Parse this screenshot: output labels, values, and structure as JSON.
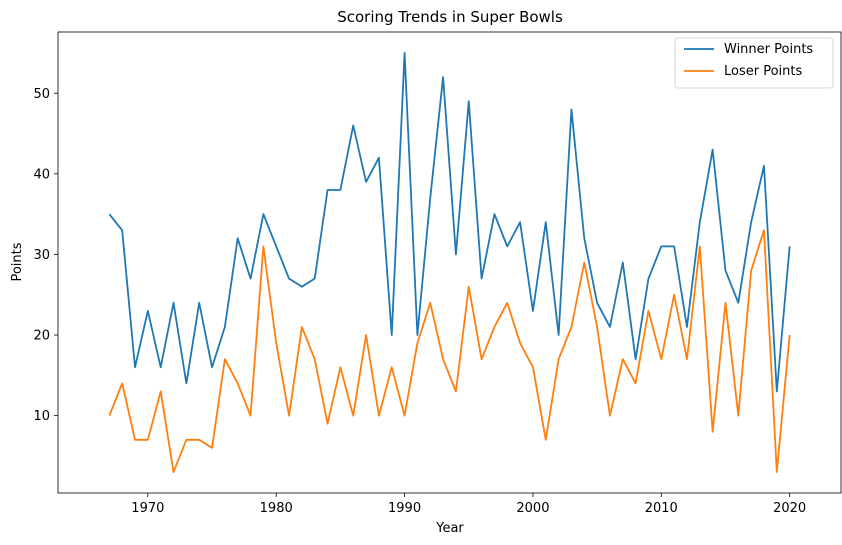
{
  "chart_data": {
    "type": "line",
    "title": "Scoring Trends in Super Bowls",
    "xlabel": "Year",
    "ylabel": "Points",
    "xlim": [
      1963,
      2024
    ],
    "ylim": [
      0.4,
      57.6
    ],
    "xticks": [
      1970,
      1980,
      1990,
      2000,
      2010,
      2020
    ],
    "yticks": [
      10,
      20,
      30,
      40,
      50
    ],
    "grid": false,
    "legend_position": "top-right",
    "x": [
      1967,
      1968,
      1969,
      1970,
      1971,
      1972,
      1973,
      1974,
      1975,
      1976,
      1977,
      1978,
      1979,
      1980,
      1981,
      1982,
      1983,
      1984,
      1985,
      1986,
      1987,
      1988,
      1989,
      1990,
      1991,
      1992,
      1993,
      1994,
      1995,
      1996,
      1997,
      1998,
      1999,
      2000,
      2001,
      2002,
      2003,
      2004,
      2005,
      2006,
      2007,
      2008,
      2009,
      2010,
      2011,
      2012,
      2013,
      2014,
      2015,
      2016,
      2017,
      2018,
      2019,
      2020
    ],
    "series": [
      {
        "name": "Winner Points",
        "color": "#1f77b4",
        "values": [
          35,
          33,
          16,
          23,
          16,
          24,
          14,
          24,
          16,
          21,
          32,
          27,
          35,
          31,
          27,
          26,
          27,
          38,
          38,
          46,
          39,
          42,
          20,
          55,
          20,
          37,
          52,
          30,
          49,
          27,
          35,
          31,
          34,
          23,
          34,
          20,
          48,
          32,
          24,
          21,
          29,
          17,
          27,
          31,
          31,
          21,
          34,
          43,
          28,
          24,
          34,
          41,
          13,
          31
        ]
      },
      {
        "name": "Loser Points",
        "color": "#ff7f0e",
        "values": [
          10,
          14,
          7,
          7,
          13,
          3,
          7,
          7,
          6,
          17,
          14,
          10,
          31,
          19,
          10,
          21,
          17,
          9,
          16,
          10,
          20,
          10,
          16,
          10,
          19,
          24,
          17,
          13,
          26,
          17,
          21,
          24,
          19,
          16,
          7,
          17,
          21,
          29,
          21,
          10,
          17,
          14,
          23,
          17,
          25,
          17,
          31,
          8,
          24,
          10,
          28,
          33,
          3,
          20
        ]
      }
    ]
  }
}
